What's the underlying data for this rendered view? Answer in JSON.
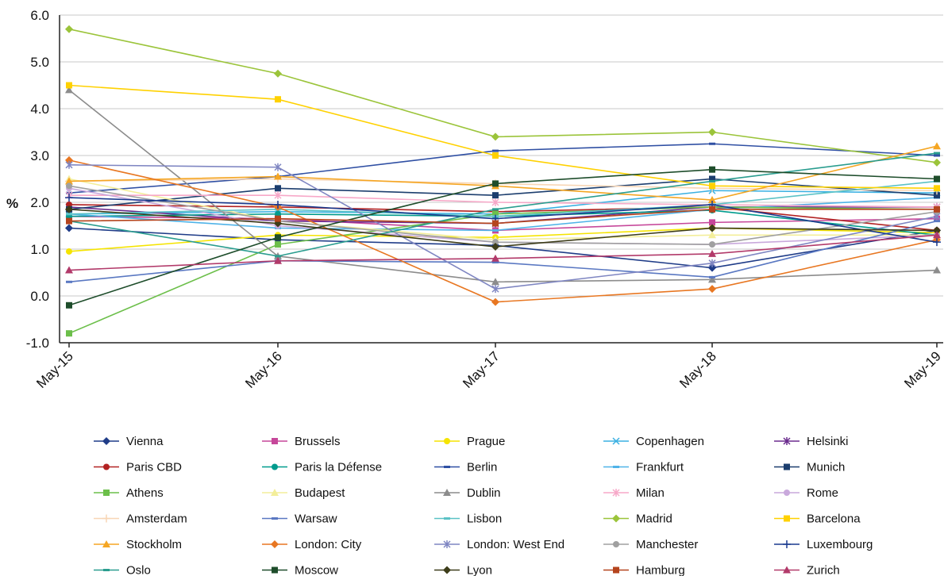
{
  "chart_data": {
    "type": "line",
    "ylabel": "%",
    "xlabel": "",
    "ylim": [
      -1.0,
      6.0
    ],
    "yticks": [
      "6.0",
      "5.0",
      "4.0",
      "3.0",
      "2.0",
      "1.0",
      "0.0",
      "-1.0"
    ],
    "categories": [
      "May-15",
      "May-16",
      "May-17",
      "May-18",
      "May-19"
    ],
    "grid": "horizontal",
    "legend_position": "bottom",
    "series": [
      {
        "name": "Vienna",
        "color": "#1f3c88",
        "marker": "diamond",
        "values": [
          1.45,
          1.2,
          1.08,
          0.6,
          1.4
        ]
      },
      {
        "name": "Brussels",
        "color": "#c6479a",
        "marker": "square",
        "values": [
          1.7,
          1.65,
          1.4,
          1.57,
          1.65
        ]
      },
      {
        "name": "Prague",
        "color": "#f5e400",
        "marker": "circle",
        "values": [
          0.95,
          1.3,
          1.25,
          1.45,
          1.35
        ]
      },
      {
        "name": "Copenhagen",
        "color": "#3ab0e2",
        "marker": "x",
        "values": [
          1.75,
          1.8,
          1.75,
          2.25,
          2.2
        ]
      },
      {
        "name": "Helsinki",
        "color": "#6b2c8e",
        "marker": "star",
        "values": [
          1.9,
          1.6,
          1.55,
          1.9,
          1.9
        ]
      },
      {
        "name": "Paris CBD",
        "color": "#b22222",
        "marker": "circle",
        "values": [
          1.95,
          1.9,
          1.8,
          1.9,
          1.4
        ]
      },
      {
        "name": "Paris la Défense",
        "color": "#009b8d",
        "marker": "circle",
        "values": [
          1.7,
          1.75,
          1.7,
          1.83,
          1.3
        ]
      },
      {
        "name": "Berlin",
        "color": "#2f4fa3",
        "marker": "dash",
        "values": [
          2.2,
          2.55,
          3.1,
          3.25,
          3.0
        ]
      },
      {
        "name": "Frankfurt",
        "color": "#4fb3e8",
        "marker": "dash",
        "values": [
          1.75,
          1.45,
          1.4,
          1.85,
          2.1
        ]
      },
      {
        "name": "Munich",
        "color": "#1c3e6e",
        "marker": "square",
        "values": [
          1.85,
          2.3,
          2.15,
          2.5,
          2.15
        ]
      },
      {
        "name": "Athens",
        "color": "#6cbf4a",
        "marker": "square",
        "values": [
          -0.8,
          1.1,
          1.75,
          1.9,
          1.85
        ]
      },
      {
        "name": "Budapest",
        "color": "#f3ee9a",
        "marker": "triangle",
        "values": [
          2.5,
          1.6,
          1.2,
          1.3,
          1.3
        ]
      },
      {
        "name": "Dublin",
        "color": "#8c8c8c",
        "marker": "triangle",
        "values": [
          4.4,
          0.85,
          0.3,
          0.35,
          0.55
        ]
      },
      {
        "name": "Milan",
        "color": "#f7a8c8",
        "marker": "star",
        "values": [
          2.15,
          2.15,
          2.0,
          1.95,
          1.9
        ]
      },
      {
        "name": "Rome",
        "color": "#c9a9dc",
        "marker": "circle",
        "values": [
          2.3,
          1.5,
          1.15,
          1.1,
          1.3
        ]
      },
      {
        "name": "Amsterdam",
        "color": "#f8d6b5",
        "marker": "plus",
        "values": [
          2.45,
          2.5,
          2.4,
          2.3,
          2.25
        ]
      },
      {
        "name": "Warsaw",
        "color": "#5a78c2",
        "marker": "dash",
        "values": [
          0.3,
          0.75,
          0.72,
          0.4,
          1.6
        ]
      },
      {
        "name": "Lisbon",
        "color": "#5bc2c6",
        "marker": "dash",
        "values": [
          1.75,
          1.85,
          1.7,
          1.95,
          2.45
        ]
      },
      {
        "name": "Madrid",
        "color": "#9bc43a",
        "marker": "diamond",
        "values": [
          5.7,
          4.75,
          3.4,
          3.5,
          2.85
        ]
      },
      {
        "name": "Barcelona",
        "color": "#ffd100",
        "marker": "square",
        "values": [
          4.5,
          4.2,
          3.0,
          2.35,
          2.3
        ]
      },
      {
        "name": "Stockholm",
        "color": "#f5a623",
        "marker": "triangle",
        "values": [
          2.45,
          2.55,
          2.35,
          2.05,
          3.2
        ]
      },
      {
        "name": "London: City",
        "color": "#e87722",
        "marker": "diamond",
        "values": [
          2.9,
          1.9,
          -0.13,
          0.15,
          1.2
        ]
      },
      {
        "name": "London: West End",
        "color": "#7f86c2",
        "marker": "star",
        "values": [
          2.8,
          2.75,
          0.15,
          0.7,
          1.7
        ]
      },
      {
        "name": "Manchester",
        "color": "#a0a0a0",
        "marker": "circle",
        "values": [
          2.35,
          1.6,
          1.15,
          1.1,
          1.8
        ]
      },
      {
        "name": "Luxembourg",
        "color": "#1a3a8f",
        "marker": "plus",
        "values": [
          2.1,
          1.95,
          1.65,
          1.95,
          1.15
        ]
      },
      {
        "name": "Oslo",
        "color": "#2a9d8f",
        "marker": "dash",
        "values": [
          1.6,
          0.85,
          1.85,
          2.45,
          3.05
        ]
      },
      {
        "name": "Moscow",
        "color": "#1e4d2b",
        "marker": "square",
        "values": [
          -0.2,
          1.25,
          2.4,
          2.7,
          2.5
        ]
      },
      {
        "name": "Lyon",
        "color": "#3d3d1a",
        "marker": "diamond",
        "values": [
          1.85,
          1.55,
          1.05,
          1.45,
          1.4
        ]
      },
      {
        "name": "Hamburg",
        "color": "#b5441d",
        "marker": "square",
        "values": [
          1.6,
          1.65,
          1.55,
          1.85,
          1.85
        ]
      },
      {
        "name": "Zurich",
        "color": "#b23a6a",
        "marker": "triangle",
        "values": [
          0.55,
          0.75,
          0.8,
          0.9,
          1.3
        ]
      }
    ]
  }
}
